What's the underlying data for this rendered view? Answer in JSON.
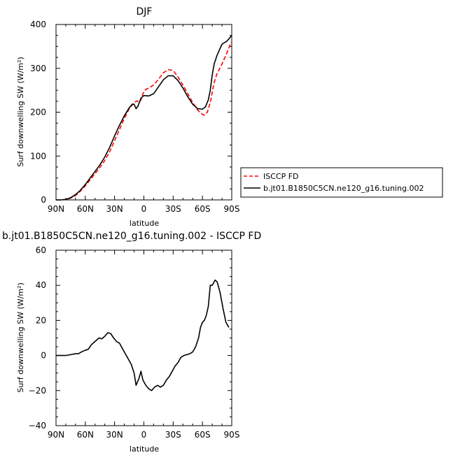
{
  "chart_data": [
    {
      "type": "line",
      "title": "DJF",
      "xlabel": "latitude",
      "ylabel": "Surf downwelling SW (W/m²)",
      "xlim": [
        -90,
        90
      ],
      "ylim": [
        0,
        400
      ],
      "x_ticks": [
        -90,
        -60,
        -30,
        0,
        30,
        60,
        90
      ],
      "x_tick_labels": [
        "90N",
        "60N",
        "30N",
        "0",
        "30S",
        "60S",
        "90S"
      ],
      "y_ticks": [
        0,
        100,
        200,
        300,
        400
      ],
      "y_tick_labels": [
        "0",
        "100",
        "200",
        "300",
        "400"
      ],
      "legend_position": "right",
      "series": [
        {
          "name": "ISCCP FD",
          "color": "#ff0000",
          "dash": "dashed",
          "points": [
            [
              -90,
              0
            ],
            [
              -85,
              0
            ],
            [
              -80,
              1
            ],
            [
              -75,
              4
            ],
            [
              -70,
              10
            ],
            [
              -65,
              20
            ],
            [
              -60,
              32
            ],
            [
              -55,
              46
            ],
            [
              -50,
              60
            ],
            [
              -45,
              74
            ],
            [
              -40,
              90
            ],
            [
              -35,
              110
            ],
            [
              -30,
              135
            ],
            [
              -25,
              160
            ],
            [
              -20,
              186
            ],
            [
              -15,
              208
            ],
            [
              -10,
              222
            ],
            [
              -7,
              226
            ],
            [
              -5,
              222
            ],
            [
              -3,
              228
            ],
            [
              -1,
              242
            ],
            [
              2,
              252
            ],
            [
              5,
              255
            ],
            [
              10,
              262
            ],
            [
              15,
              275
            ],
            [
              20,
              290
            ],
            [
              25,
              297
            ],
            [
              30,
              295
            ],
            [
              35,
              280
            ],
            [
              40,
              262
            ],
            [
              45,
              242
            ],
            [
              50,
              222
            ],
            [
              55,
              205
            ],
            [
              60,
              195
            ],
            [
              62,
              193
            ],
            [
              65,
              200
            ],
            [
              68,
              222
            ],
            [
              70,
              245
            ],
            [
              72,
              268
            ],
            [
              75,
              288
            ],
            [
              80,
              310
            ],
            [
              85,
              335
            ],
            [
              88,
              352
            ],
            [
              90,
              360
            ]
          ]
        },
        {
          "name": "b.jt01.B1850C5CN.ne120_g16.tuning.002",
          "color": "#000000",
          "dash": "solid",
          "points": [
            [
              -90,
              0
            ],
            [
              -85,
              0
            ],
            [
              -80,
              1
            ],
            [
              -75,
              5
            ],
            [
              -70,
              12
            ],
            [
              -65,
              22
            ],
            [
              -60,
              35
            ],
            [
              -55,
              50
            ],
            [
              -50,
              65
            ],
            [
              -45,
              80
            ],
            [
              -40,
              98
            ],
            [
              -35,
              120
            ],
            [
              -30,
              146
            ],
            [
              -25,
              170
            ],
            [
              -20,
              192
            ],
            [
              -15,
              210
            ],
            [
              -12,
              218
            ],
            [
              -10,
              218
            ],
            [
              -8,
              208
            ],
            [
              -6,
              214
            ],
            [
              -3,
              232
            ],
            [
              0,
              238
            ],
            [
              5,
              237
            ],
            [
              10,
              242
            ],
            [
              15,
              258
            ],
            [
              20,
              274
            ],
            [
              25,
              283
            ],
            [
              30,
              283
            ],
            [
              35,
              272
            ],
            [
              40,
              255
            ],
            [
              45,
              235
            ],
            [
              50,
              218
            ],
            [
              55,
              208
            ],
            [
              60,
              207
            ],
            [
              63,
              212
            ],
            [
              66,
              228
            ],
            [
              68,
              250
            ],
            [
              70,
              285
            ],
            [
              72,
              310
            ],
            [
              75,
              330
            ],
            [
              80,
              355
            ],
            [
              85,
              362
            ],
            [
              90,
              375
            ]
          ]
        }
      ]
    },
    {
      "type": "line",
      "title": "b.jt01.B1850C5CN.ne120_g16.tuning.002 - ISCCP FD",
      "xlabel": "latitude",
      "ylabel": "Surf downwelling SW (W/m²)",
      "xlim": [
        -90,
        90
      ],
      "ylim": [
        -40,
        60
      ],
      "x_ticks": [
        -90,
        -60,
        -30,
        0,
        30,
        60,
        90
      ],
      "x_tick_labels": [
        "90N",
        "60N",
        "30N",
        "0",
        "30S",
        "60S",
        "90S"
      ],
      "y_ticks": [
        -40,
        -20,
        0,
        20,
        40,
        60
      ],
      "y_tick_labels": [
        "−40",
        "−20",
        "0",
        "20",
        "40",
        "60"
      ],
      "series": [
        {
          "color": "#000000",
          "dash": "solid",
          "points": [
            [
              -90,
              0
            ],
            [
              -85,
              0
            ],
            [
              -80,
              0
            ],
            [
              -75,
              0.5
            ],
            [
              -70,
              1
            ],
            [
              -67,
              1
            ],
            [
              -64,
              2
            ],
            [
              -60,
              3
            ],
            [
              -57,
              3.5
            ],
            [
              -54,
              6
            ],
            [
              -50,
              8
            ],
            [
              -46,
              10
            ],
            [
              -43,
              9.5
            ],
            [
              -40,
              11
            ],
            [
              -37,
              13
            ],
            [
              -34,
              12.5
            ],
            [
              -31,
              10
            ],
            [
              -28,
              8
            ],
            [
              -25,
              7
            ],
            [
              -22,
              4
            ],
            [
              -19,
              1
            ],
            [
              -16,
              -2
            ],
            [
              -13,
              -5
            ],
            [
              -10,
              -10
            ],
            [
              -8,
              -17
            ],
            [
              -5,
              -13
            ],
            [
              -3,
              -9
            ],
            [
              -1,
              -14
            ],
            [
              2,
              -17
            ],
            [
              5,
              -19
            ],
            [
              8,
              -20
            ],
            [
              11,
              -18
            ],
            [
              14,
              -17
            ],
            [
              17,
              -18
            ],
            [
              20,
              -17
            ],
            [
              23,
              -14
            ],
            [
              26,
              -12
            ],
            [
              29,
              -9
            ],
            [
              32,
              -6
            ],
            [
              35,
              -4
            ],
            [
              38,
              -1
            ],
            [
              41,
              0
            ],
            [
              44,
              0.5
            ],
            [
              47,
              1
            ],
            [
              50,
              2
            ],
            [
              53,
              5
            ],
            [
              56,
              10
            ],
            [
              58,
              16
            ],
            [
              60,
              19
            ],
            [
              62,
              20
            ],
            [
              64,
              23
            ],
            [
              66,
              28
            ],
            [
              68,
              40
            ],
            [
              70,
              40
            ],
            [
              72,
              42
            ],
            [
              73,
              43
            ],
            [
              75,
              42
            ],
            [
              78,
              36
            ],
            [
              81,
              27
            ],
            [
              84,
              19
            ],
            [
              87,
              16
            ]
          ]
        }
      ]
    }
  ]
}
